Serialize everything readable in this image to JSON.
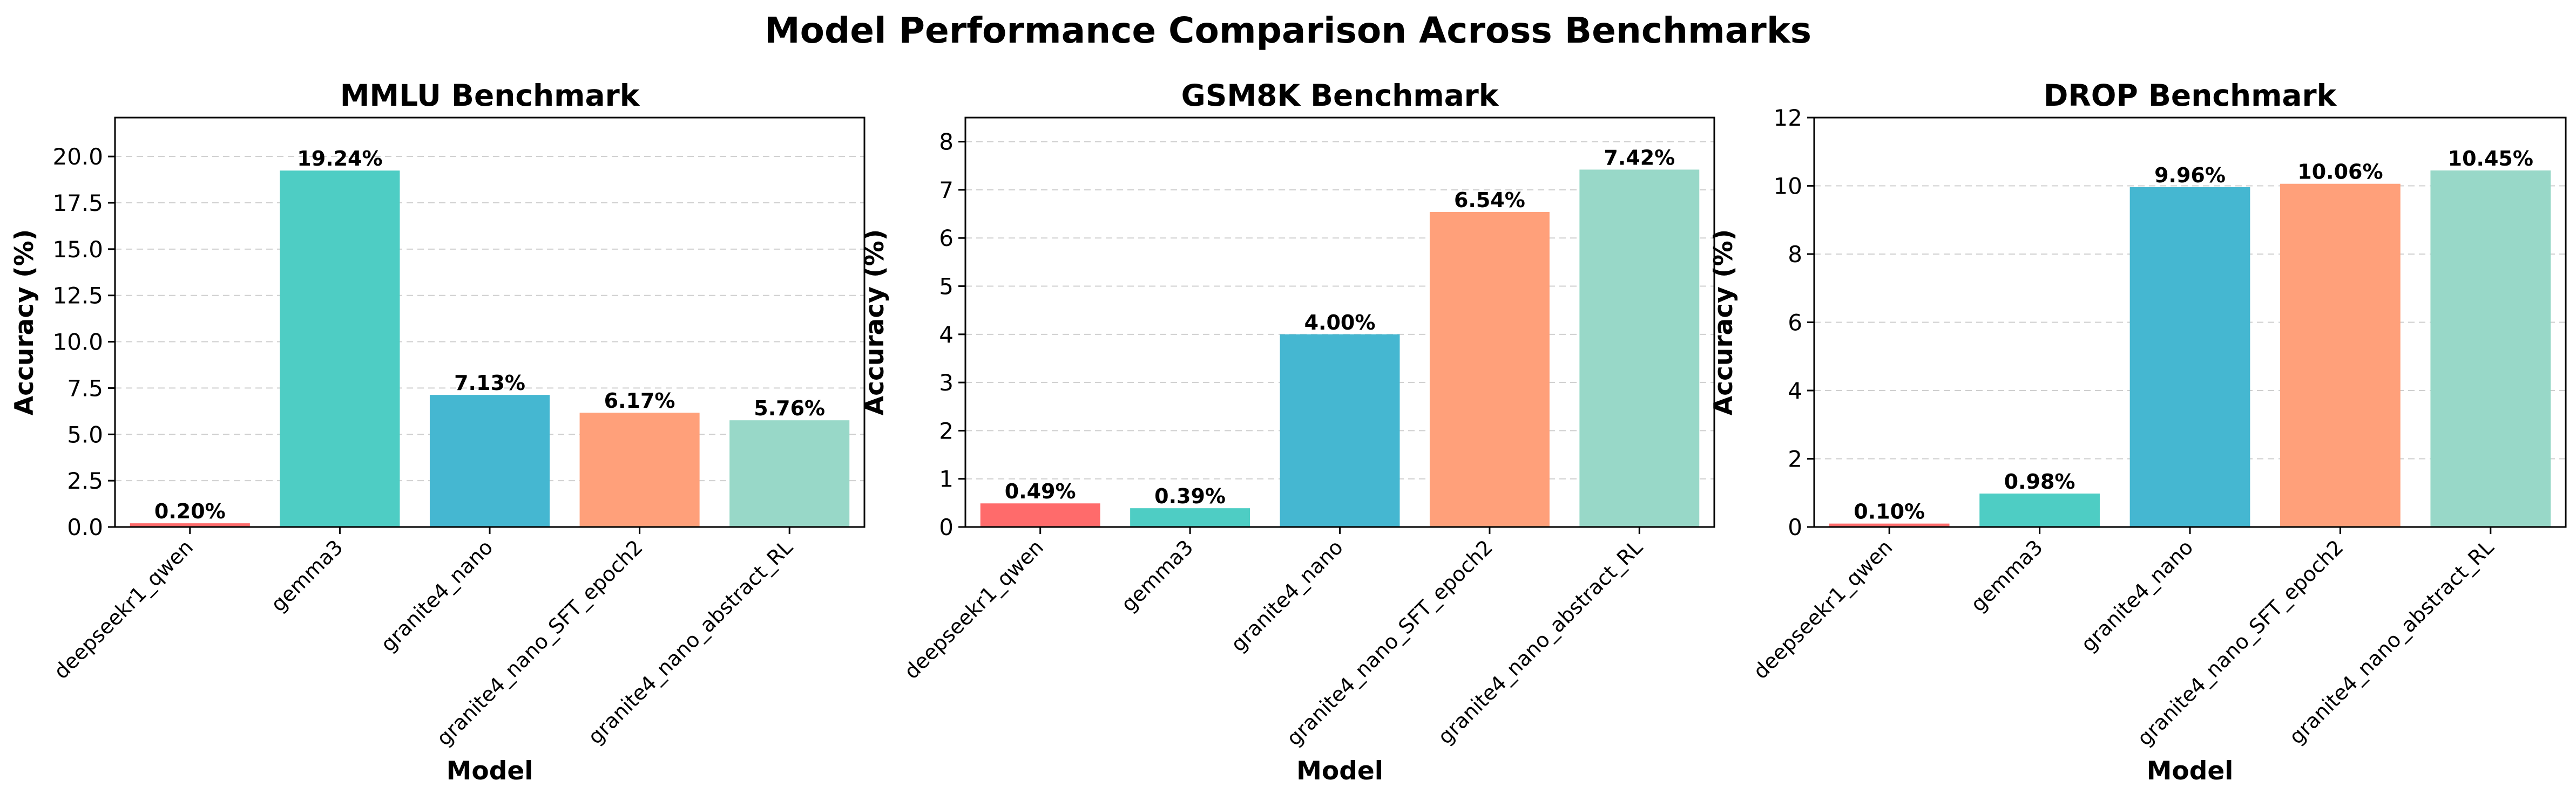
{
  "suptitle": "Model Performance Comparison Across Benchmarks",
  "chart_data": [
    {
      "type": "bar",
      "title": "MMLU Benchmark",
      "xlabel": "Model",
      "ylabel": "Accuracy (%)",
      "categories": [
        "deepseekr1_qwen",
        "gemma3",
        "granite4_nano",
        "granite4_nano_SFT_epoch2",
        "granite4_nano_abstract_RL"
      ],
      "values": [
        0.2,
        19.24,
        7.13,
        6.17,
        5.76
      ],
      "data_labels": [
        "0.20%",
        "19.24%",
        "7.13%",
        "6.17%",
        "5.76%"
      ],
      "ylim": [
        0,
        22.1
      ],
      "yticks": [
        0,
        2.5,
        5,
        7.5,
        10,
        12.5,
        15,
        17.5,
        20
      ],
      "ytick_labels": [
        "0.0",
        "2.5",
        "5.0",
        "7.5",
        "10.0",
        "12.5",
        "15.0",
        "17.5",
        "20.0"
      ],
      "grid": "y-dashed",
      "colors": [
        "#ff6b6b",
        "#4ecdc4",
        "#45b7d1",
        "#ffa07a",
        "#98d8c8"
      ]
    },
    {
      "type": "bar",
      "title": "GSM8K Benchmark",
      "xlabel": "Model",
      "ylabel": "Accuracy (%)",
      "categories": [
        "deepseekr1_qwen",
        "gemma3",
        "granite4_nano",
        "granite4_nano_SFT_epoch2",
        "granite4_nano_abstract_RL"
      ],
      "values": [
        0.49,
        0.39,
        4.0,
        6.54,
        7.42
      ],
      "data_labels": [
        "0.49%",
        "0.39%",
        "4.00%",
        "6.54%",
        "7.42%"
      ],
      "ylim": [
        0,
        8.5
      ],
      "yticks": [
        0,
        1,
        2,
        3,
        4,
        5,
        6,
        7,
        8
      ],
      "ytick_labels": [
        "0",
        "1",
        "2",
        "3",
        "4",
        "5",
        "6",
        "7",
        "8"
      ],
      "grid": "y-dashed",
      "colors": [
        "#ff6b6b",
        "#4ecdc4",
        "#45b7d1",
        "#ffa07a",
        "#98d8c8"
      ]
    },
    {
      "type": "bar",
      "title": "DROP Benchmark",
      "xlabel": "Model",
      "ylabel": "Accuracy (%)",
      "categories": [
        "deepseekr1_qwen",
        "gemma3",
        "granite4_nano",
        "granite4_nano_SFT_epoch2",
        "granite4_nano_abstract_RL"
      ],
      "values": [
        0.1,
        0.98,
        9.96,
        10.06,
        10.45
      ],
      "data_labels": [
        "0.10%",
        "0.98%",
        "9.96%",
        "10.06%",
        "10.45%"
      ],
      "ylim": [
        0,
        12
      ],
      "yticks": [
        0,
        2,
        4,
        6,
        8,
        10,
        12
      ],
      "ytick_labels": [
        "0",
        "2",
        "4",
        "6",
        "8",
        "10",
        "12"
      ],
      "grid": "y-dashed",
      "colors": [
        "#ff6b6b",
        "#4ecdc4",
        "#45b7d1",
        "#ffa07a",
        "#98d8c8"
      ]
    }
  ]
}
